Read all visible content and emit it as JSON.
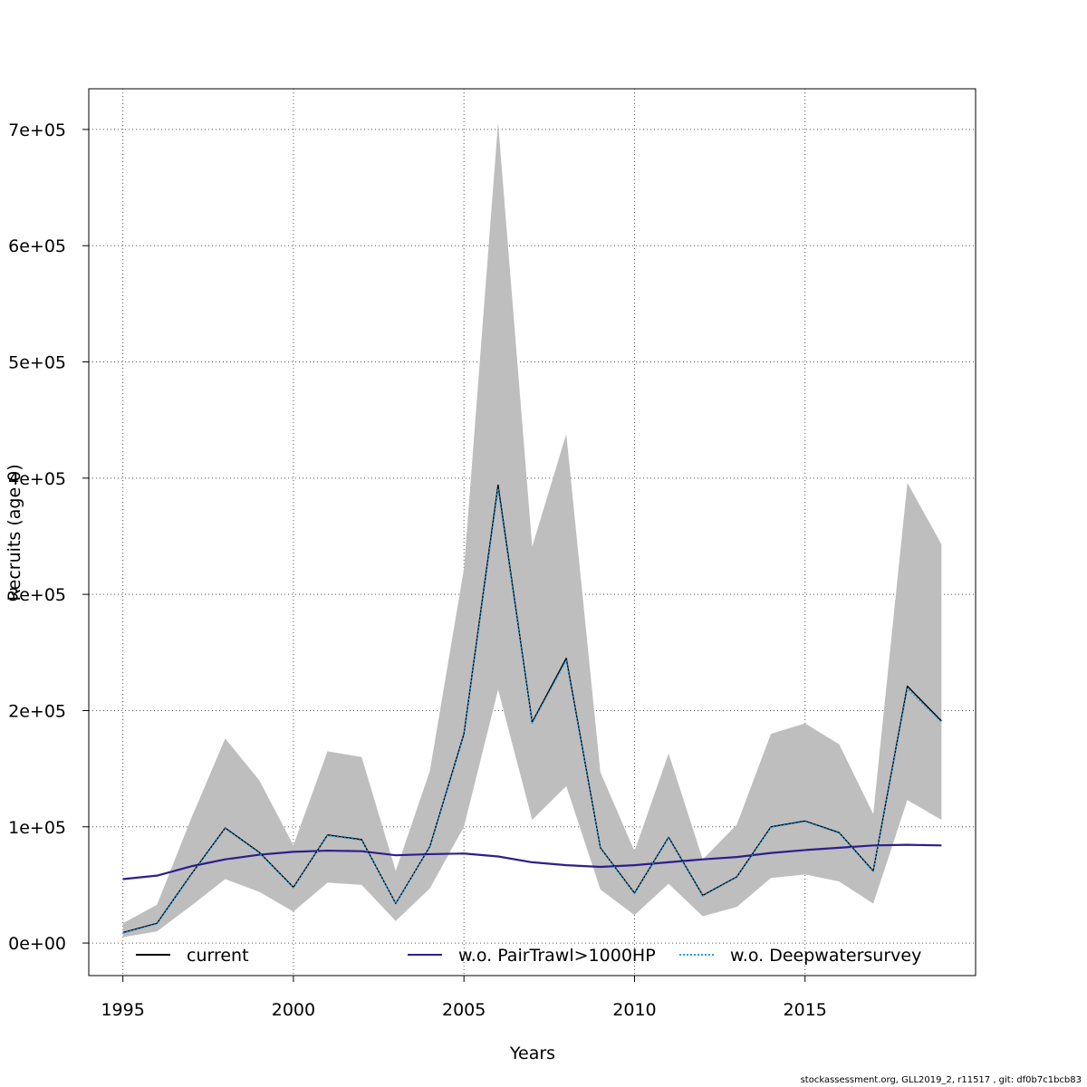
{
  "chart_data": {
    "type": "line",
    "xlabel": "Years",
    "ylabel": "Recruits (age 0)",
    "xlim": [
      1994,
      2020
    ],
    "ylim": [
      -28000,
      735000
    ],
    "grid": true,
    "x_ticks": [
      1995,
      2000,
      2005,
      2010,
      2015
    ],
    "y_ticks": [
      0,
      100000,
      200000,
      300000,
      400000,
      500000,
      600000,
      700000
    ],
    "y_tick_labels": [
      "0e+00",
      "1e+05",
      "2e+05",
      "3e+05",
      "4e+05",
      "5e+05",
      "6e+05",
      "7e+05"
    ],
    "x": [
      1995,
      1996,
      1997,
      1998,
      1999,
      2000,
      2001,
      2002,
      2003,
      2004,
      2005,
      2006,
      2007,
      2008,
      2009,
      2010,
      2011,
      2012,
      2013,
      2014,
      2015,
      2016,
      2017,
      2018,
      2019
    ],
    "confidence_band": {
      "color": "#bebebe",
      "lower": [
        5000,
        10000,
        32000,
        55000,
        44000,
        27000,
        52000,
        50000,
        19000,
        47000,
        100000,
        218000,
        106000,
        135000,
        46000,
        24000,
        51000,
        23000,
        31000,
        56000,
        59000,
        53000,
        34000,
        123000,
        106000
      ],
      "upper": [
        17000,
        33000,
        107000,
        176000,
        140000,
        84000,
        165000,
        160000,
        62000,
        148000,
        322000,
        706000,
        341000,
        438000,
        147000,
        79000,
        163000,
        72000,
        102000,
        180000,
        189000,
        171000,
        111000,
        396000,
        343000
      ]
    },
    "series": [
      {
        "name": "current",
        "color": "#000000",
        "style": "solid",
        "values": [
          9000,
          17000,
          59000,
          99000,
          78000,
          48000,
          93000,
          89000,
          34000,
          83000,
          180000,
          394000,
          190000,
          245000,
          82000,
          43000,
          91000,
          41000,
          57000,
          100000,
          105000,
          95000,
          62000,
          221000,
          191000
        ]
      },
      {
        "name": "w.o. PairTrawl>1000HP",
        "color": "#2e1e8c",
        "style": "solid",
        "values": [
          55000,
          58000,
          66000,
          72000,
          76000,
          78500,
          79500,
          79000,
          75500,
          76500,
          77000,
          74500,
          69500,
          67000,
          65500,
          67000,
          69500,
          72000,
          74000,
          77500,
          80000,
          82000,
          84000,
          84500,
          84000
        ]
      },
      {
        "name": "w.o. Deepwatersurvey",
        "color": "#1e9ee8",
        "style": "dotted",
        "values": [
          8500,
          16500,
          58500,
          98500,
          77500,
          47500,
          92500,
          88500,
          34000,
          82500,
          179000,
          391000,
          189000,
          243000,
          81500,
          42500,
          90500,
          40500,
          56500,
          99500,
          104500,
          94500,
          61500,
          219000,
          190000
        ]
      }
    ],
    "legend": {
      "placement": "bottom",
      "columns": 3
    }
  },
  "footer": "stockassessment.org, GLL2019_2, r11517 , git: df0b7c1bcb83"
}
